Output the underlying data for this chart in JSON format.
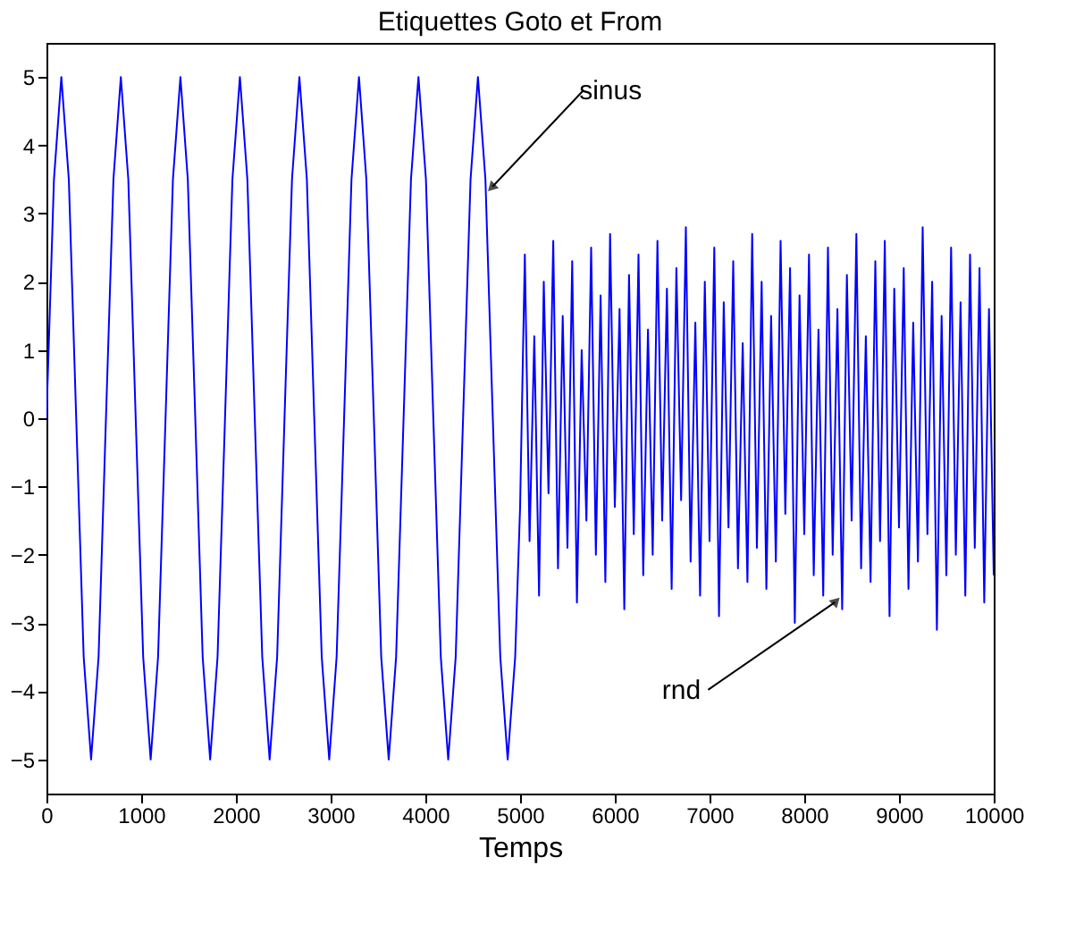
{
  "chart_data": {
    "type": "line",
    "title": "Etiquettes Goto  et From",
    "xlabel": "Temps",
    "xlim": [
      0,
      10000
    ],
    "ylim": [
      -5.5,
      5.5
    ],
    "xticks": [
      0,
      1000,
      2000,
      3000,
      4000,
      5000,
      6000,
      7000,
      8000,
      9000,
      10000
    ],
    "yticks": [
      -5,
      -4,
      -3,
      -2,
      -1,
      0,
      1,
      2,
      3,
      4,
      5
    ],
    "grid": false,
    "marker": "none",
    "line_style": "solid",
    "annotations": [
      {
        "text": "sinus",
        "x": 4634,
        "y": 3.5
      },
      {
        "text": "rnd",
        "x": 8400,
        "y": -2.8
      }
    ],
    "series": [
      {
        "color": "#0000ff",
        "x": [
          0,
          79,
          157,
          236,
          314,
          393,
          471,
          550,
          628,
          707,
          785,
          864,
          942,
          1021,
          1100,
          1178,
          1257,
          1335,
          1414,
          1492,
          1571,
          1649,
          1728,
          1806,
          1885,
          1963,
          2042,
          2121,
          2199,
          2278,
          2356,
          2435,
          2513,
          2592,
          2670,
          2749,
          2827,
          2906,
          2985,
          3063,
          3142,
          3220,
          3299,
          3377,
          3456,
          3534,
          3613,
          3691,
          3770,
          3848,
          3927,
          4006,
          4084,
          4163,
          4241,
          4320,
          4398,
          4477,
          4555,
          4634,
          4712,
          4791,
          4869,
          4948,
          5000,
          5050,
          5100,
          5150,
          5200,
          5250,
          5300,
          5350,
          5400,
          5450,
          5500,
          5550,
          5600,
          5650,
          5700,
          5750,
          5800,
          5850,
          5900,
          5950,
          6000,
          6050,
          6100,
          6150,
          6200,
          6250,
          6300,
          6350,
          6400,
          6450,
          6500,
          6550,
          6600,
          6650,
          6700,
          6750,
          6800,
          6850,
          6900,
          6950,
          7000,
          7050,
          7100,
          7150,
          7200,
          7250,
          7300,
          7350,
          7400,
          7450,
          7500,
          7550,
          7600,
          7650,
          7700,
          7750,
          7800,
          7850,
          7900,
          7950,
          8000,
          8050,
          8100,
          8150,
          8200,
          8250,
          8300,
          8350,
          8400,
          8450,
          8500,
          8550,
          8600,
          8650,
          8700,
          8750,
          8800,
          8850,
          8900,
          8950,
          9000,
          9050,
          9100,
          9150,
          9200,
          9250,
          9300,
          9350,
          9400,
          9450,
          9500,
          9550,
          9600,
          9650,
          9700,
          9750,
          9800,
          9850,
          9900,
          9950,
          10000
        ],
        "values": [
          0,
          3.5,
          5,
          3.5,
          0,
          -3.5,
          -5,
          -3.5,
          0,
          3.5,
          5,
          3.5,
          0,
          -3.5,
          -5,
          -3.5,
          0,
          3.5,
          5,
          3.5,
          0,
          -3.5,
          -5,
          -3.5,
          0,
          3.5,
          5,
          3.5,
          0,
          -3.5,
          -5,
          -3.5,
          0,
          3.5,
          5,
          3.5,
          0,
          -3.5,
          -5,
          -3.5,
          0,
          3.5,
          5,
          3.5,
          0,
          -3.5,
          -5,
          -3.5,
          0,
          3.5,
          5,
          3.5,
          0,
          -3.5,
          -5,
          -3.5,
          0,
          3.5,
          5,
          3.5,
          0,
          -3.5,
          -5,
          -3.5,
          -1.3,
          2.4,
          -1.8,
          1.2,
          -2.6,
          2.0,
          -1.1,
          2.6,
          -2.2,
          1.5,
          -1.9,
          2.3,
          -2.7,
          1.0,
          -1.5,
          2.5,
          -2.0,
          1.8,
          -2.4,
          2.7,
          -1.3,
          1.6,
          -2.8,
          2.1,
          -1.7,
          2.4,
          -2.3,
          1.3,
          -2.0,
          2.6,
          -1.5,
          1.9,
          -2.5,
          2.2,
          -1.2,
          2.8,
          -2.1,
          1.4,
          -2.6,
          2.0,
          -1.8,
          2.5,
          -2.9,
          1.7,
          -1.6,
          2.3,
          -2.2,
          1.1,
          -2.4,
          2.7,
          -1.9,
          2.0,
          -2.5,
          1.5,
          -2.1,
          2.6,
          -1.4,
          2.2,
          -3.0,
          1.8,
          -1.7,
          2.4,
          -2.3,
          1.3,
          -2.6,
          2.5,
          -2.0,
          1.6,
          -2.8,
          2.1,
          -1.5,
          2.7,
          -2.2,
          1.2,
          -2.4,
          2.3,
          -1.8,
          2.6,
          -2.9,
          1.9,
          -1.6,
          2.2,
          -2.5,
          1.4,
          -2.1,
          2.8,
          -1.7,
          2.0,
          -3.1,
          1.5,
          -2.3,
          2.5,
          -2.0,
          1.7,
          -2.6,
          2.4,
          -1.9,
          2.2,
          -2.7,
          1.6,
          -2.3
        ]
      }
    ]
  }
}
